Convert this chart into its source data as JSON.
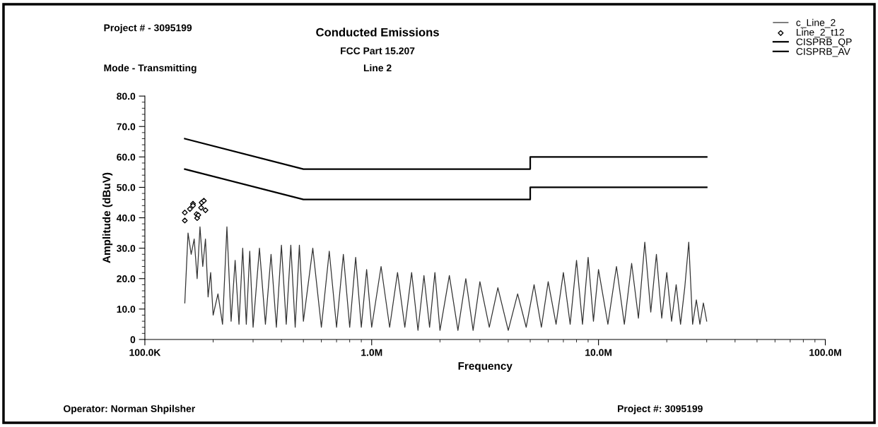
{
  "chart_data": {
    "type": "line",
    "title": "Conducted Emissions",
    "subtitle": "FCC Part 15.207",
    "xlabel": "Frequency",
    "ylabel": "Amplitude (dBuV)",
    "annotations": [
      "Line 2",
      "Project # - 3095199",
      "Mode - Transmitting",
      "Operator: Norman Shpilsher",
      "Project #: 3095199"
    ],
    "log": "x",
    "xlim": [
      100000,
      100000000
    ],
    "xticks": [
      {
        "value": 100000,
        "label": "100.0K"
      },
      {
        "value": 1000000,
        "label": "1.0M"
      },
      {
        "value": 10000000,
        "label": "10.0M"
      },
      {
        "value": 100000000,
        "label": "100.0M"
      }
    ],
    "ylim": [
      0,
      80
    ],
    "yticks": [
      0,
      {
        "value": 10,
        "label": "10.0"
      },
      {
        "value": 20,
        "label": "20.0"
      },
      {
        "value": 30,
        "label": "30.0"
      },
      {
        "value": 40,
        "label": "40.0"
      },
      {
        "value": 50,
        "label": "50.0"
      },
      {
        "value": 60,
        "label": "60.0"
      },
      {
        "value": 70,
        "label": "70.0"
      },
      {
        "value": 80,
        "label": "80.0"
      }
    ],
    "grid": false,
    "legend": "top right",
    "series": [
      {
        "name": "c_Line_2",
        "color": "#333333",
        "x": [
          150000,
          155000,
          160000,
          165000,
          170000,
          175000,
          180000,
          185000,
          190000,
          195000,
          200000,
          210000,
          220000,
          230000,
          240000,
          250000,
          260000,
          270000,
          280000,
          290000,
          300000,
          320000,
          340000,
          360000,
          380000,
          400000,
          420000,
          440000,
          460000,
          480000,
          500000,
          550000,
          600000,
          650000,
          700000,
          750000,
          800000,
          850000,
          900000,
          950000,
          1000000,
          1100000,
          1200000,
          1300000,
          1400000,
          1500000,
          1600000,
          1700000,
          1800000,
          1900000,
          2000000,
          2200000,
          2400000,
          2600000,
          2800000,
          3000000,
          3300000,
          3600000,
          4000000,
          4400000,
          4800000,
          5200000,
          5600000,
          6000000,
          6500000,
          7000000,
          7500000,
          8000000,
          8500000,
          9000000,
          9500000,
          10000000,
          11000000,
          12000000,
          13000000,
          14000000,
          15000000,
          16000000,
          17000000,
          18000000,
          19000000,
          20000000,
          21000000,
          22000000,
          23000000,
          24000000,
          25000000,
          26000000,
          27000000,
          28000000,
          29000000,
          30000000
        ],
        "values": [
          12,
          35,
          28,
          33,
          20,
          37,
          24,
          33,
          14,
          22,
          8,
          15,
          5,
          37,
          6,
          26,
          5,
          30,
          5,
          29,
          4,
          30,
          5,
          28,
          4,
          31,
          5,
          31,
          4,
          31,
          6,
          30,
          4,
          29,
          4,
          28,
          4,
          27,
          4,
          23,
          4,
          24,
          4,
          22,
          4,
          22,
          3,
          21,
          4,
          22,
          3,
          21,
          3,
          20,
          3,
          19,
          4,
          17,
          3,
          15,
          4,
          18,
          4,
          19,
          5,
          22,
          5,
          26,
          5,
          27,
          6,
          23,
          5,
          24,
          5,
          25,
          7,
          32,
          9,
          28,
          7,
          22,
          6,
          18,
          5,
          17,
          32,
          5,
          13,
          5,
          12,
          6
        ]
      },
      {
        "name": "Line_2_t12",
        "type": "scatter",
        "marker": "diamond",
        "color": "#000000",
        "x": [
          150000,
          150000,
          158000,
          163000,
          163000,
          169000,
          170000,
          172000,
          177000,
          178000,
          182000,
          185000
        ],
        "values": [
          41.7,
          39.1,
          42.9,
          44.6,
          44.0,
          41.2,
          39.9,
          40.9,
          43.3,
          45.0,
          45.6,
          42.5
        ]
      },
      {
        "name": "CISPRB_QP",
        "color": "#000000",
        "x": [
          150000,
          500000,
          5000000,
          5000000,
          30000000
        ],
        "values": [
          66,
          56,
          56,
          60,
          60
        ]
      },
      {
        "name": "CISPRB_AV",
        "color": "#000000",
        "x": [
          150000,
          500000,
          5000000,
          5000000,
          30000000
        ],
        "values": [
          56,
          46,
          46,
          50,
          50
        ]
      }
    ]
  }
}
